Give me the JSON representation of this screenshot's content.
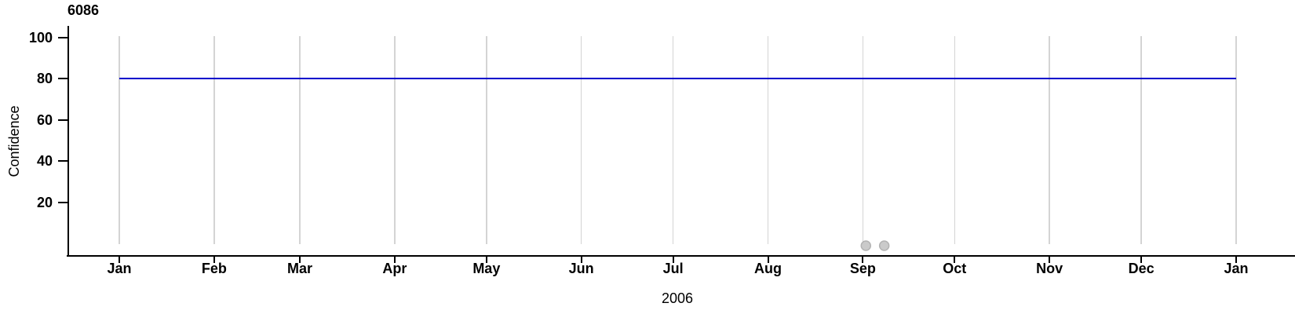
{
  "chart_data": {
    "type": "line",
    "title": "6086",
    "ylabel": "Confidence",
    "xlabel": "2006",
    "x_axis": {
      "unit": "day-of-year",
      "range_days": [
        0,
        365
      ],
      "gridlines": true,
      "ticks": [
        {
          "label": "Jan",
          "day": 0
        },
        {
          "label": "Feb",
          "day": 31
        },
        {
          "label": "Mar",
          "day": 59
        },
        {
          "label": "Apr",
          "day": 90
        },
        {
          "label": "May",
          "day": 120
        },
        {
          "label": "Jun",
          "day": 151
        },
        {
          "label": "Jul",
          "day": 181
        },
        {
          "label": "Aug",
          "day": 212
        },
        {
          "label": "Sep",
          "day": 243
        },
        {
          "label": "Oct",
          "day": 273
        },
        {
          "label": "Nov",
          "day": 304
        },
        {
          "label": "Dec",
          "day": 334
        },
        {
          "label": "Jan",
          "day": 365
        }
      ]
    },
    "y_axis": {
      "ticks": [
        20,
        40,
        60,
        80,
        100
      ],
      "range": [
        0,
        100
      ]
    },
    "series": [
      {
        "name": "confidence",
        "type": "line",
        "color": "#0000CC",
        "points": [
          {
            "day": 0,
            "value": 80
          },
          {
            "day": 365,
            "value": 80
          }
        ]
      }
    ],
    "markers": [
      {
        "day": 244,
        "value": 0
      },
      {
        "day": 250,
        "value": 0
      }
    ],
    "marker_style": {
      "fill": "#CACACA",
      "stroke": "#B3B3B3",
      "radius_px": 6
    },
    "colors": {
      "axis": "#000000",
      "gridline": "#D4D4D4",
      "text": "#000000"
    }
  }
}
